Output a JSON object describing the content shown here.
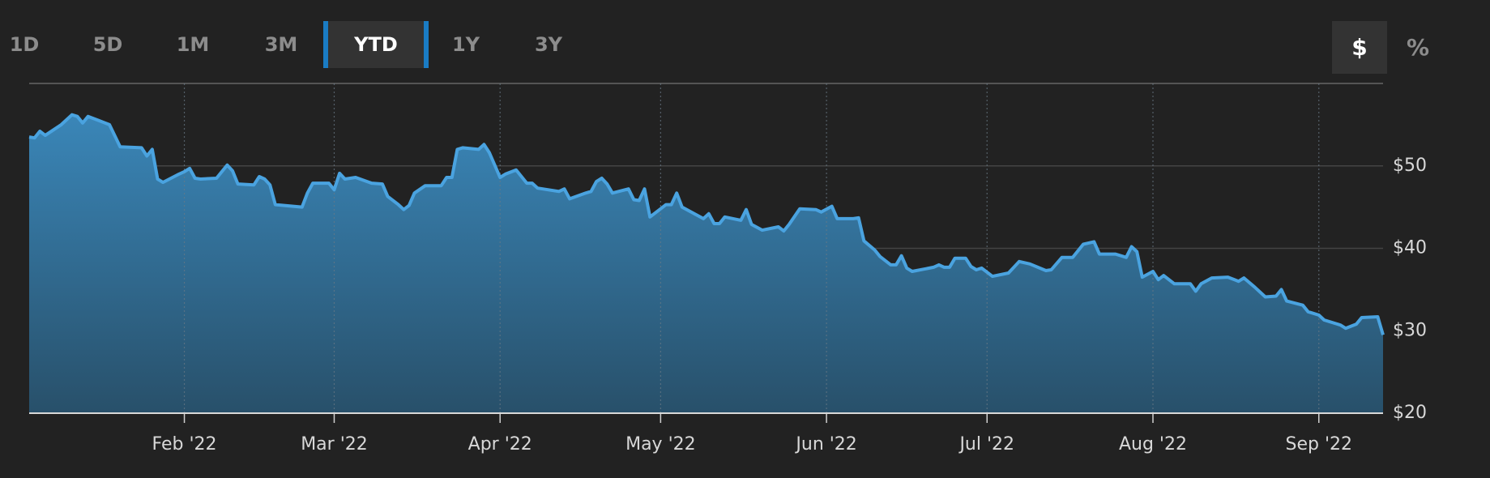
{
  "tabs": [
    "1D",
    "5D",
    "1M",
    "3M",
    "YTD",
    "1Y",
    "3Y"
  ],
  "units": [
    "$",
    "%"
  ],
  "chart_data": {
    "type": "area",
    "color": "#4aa3e0",
    "fill_top": "#3a86b8",
    "fill_bottom": "#28506a",
    "grid": true,
    "x": [
      0,
      1,
      2,
      3,
      6,
      8,
      9,
      10,
      11,
      13,
      15,
      17,
      21,
      22,
      23,
      24,
      25,
      28,
      29,
      30,
      31,
      32,
      35,
      37,
      38,
      39,
      42,
      43,
      44,
      45,
      46,
      51,
      52,
      53,
      56,
      57,
      58,
      59,
      61,
      64,
      66,
      67,
      69,
      70,
      71,
      72,
      74,
      77,
      78,
      79,
      80,
      81,
      84,
      85,
      86,
      88,
      89,
      91,
      93,
      94,
      95,
      99,
      100,
      101,
      104,
      105,
      106,
      107,
      108,
      109,
      112,
      113,
      114,
      115,
      116,
      118,
      119,
      120,
      121,
      122,
      124,
      126,
      127,
      128,
      129,
      130,
      133,
      134,
      135,
      137,
      140,
      141,
      142,
      144,
      147,
      148,
      150,
      151,
      154,
      155,
      156,
      158,
      159,
      161,
      162,
      163,
      164,
      165,
      169,
      170,
      171,
      172,
      173,
      175,
      176,
      177,
      178,
      180,
      183,
      185,
      187,
      190,
      191,
      193,
      195,
      197,
      199,
      200,
      203,
      205,
      206,
      207,
      208,
      210,
      211,
      212,
      214,
      217,
      218,
      219,
      221,
      224,
      226,
      227,
      229,
      231,
      233,
      234,
      235,
      238,
      239,
      241,
      242,
      245,
      246,
      248,
      249,
      252,
      253
    ],
    "values": [
      53.5,
      53.4,
      54.2,
      53.7,
      55.0,
      56.2,
      56.0,
      55.2,
      56.0,
      55.5,
      55.0,
      52.3,
      52.2,
      51.2,
      52.0,
      48.4,
      48.0,
      49.0,
      49.3,
      49.7,
      48.5,
      48.4,
      48.5,
      50.1,
      49.4,
      47.8,
      47.7,
      48.7,
      48.4,
      47.7,
      45.3,
      45.0,
      46.7,
      47.9,
      47.9,
      47.1,
      49.1,
      48.4,
      48.6,
      47.9,
      47.8,
      46.3,
      45.3,
      44.7,
      45.2,
      46.7,
      47.6,
      47.6,
      48.6,
      48.6,
      52.0,
      52.2,
      52.0,
      52.6,
      51.6,
      48.6,
      49.0,
      49.5,
      47.9,
      47.9,
      47.3,
      46.9,
      47.2,
      46.0,
      46.7,
      46.9,
      48.1,
      48.5,
      47.8,
      46.7,
      47.2,
      45.9,
      45.8,
      47.2,
      43.8,
      44.8,
      45.3,
      45.3,
      46.7,
      45.0,
      44.3,
      43.6,
      44.2,
      43.0,
      43.0,
      43.8,
      43.4,
      44.7,
      42.9,
      42.2,
      42.6,
      42.1,
      42.9,
      44.8,
      44.7,
      44.4,
      45.1,
      43.6,
      43.6,
      43.7,
      40.9,
      39.8,
      39.0,
      38.0,
      38.0,
      39.1,
      37.6,
      37.2,
      37.7,
      38.0,
      37.7,
      37.7,
      38.8,
      38.8,
      37.8,
      37.4,
      37.6,
      36.6,
      37.0,
      38.4,
      38.1,
      37.3,
      37.4,
      38.9,
      38.9,
      40.5,
      40.8,
      39.3,
      39.3,
      38.9,
      40.2,
      39.6,
      36.5,
      37.2,
      36.2,
      36.7,
      35.7,
      35.7,
      34.8,
      35.7,
      36.4,
      36.5,
      36.0,
      36.4,
      35.3,
      34.1,
      34.2,
      35.0,
      33.6,
      33.1,
      32.3,
      31.9,
      31.3,
      30.7,
      30.3,
      30.8,
      31.6,
      31.7,
      29.5
    ],
    "xlim": [
      0,
      253
    ],
    "xticks": [
      {
        "value": 29,
        "label": "Feb '22"
      },
      {
        "value": 57,
        "label": "Mar '22"
      },
      {
        "value": 88,
        "label": "Apr '22"
      },
      {
        "value": 118,
        "label": "May '22"
      },
      {
        "value": 149,
        "label": "Jun '22"
      },
      {
        "value": 179,
        "label": "Jul '22"
      },
      {
        "value": 210,
        "label": "Aug '22"
      },
      {
        "value": 241,
        "label": "Sep '22"
      }
    ],
    "ylim": [
      20,
      60
    ],
    "yticks": [
      {
        "value": 20,
        "label": "$20"
      },
      {
        "value": 30,
        "label": "$30"
      },
      {
        "value": 40,
        "label": "$40"
      },
      {
        "value": 50,
        "label": "$50"
      }
    ]
  }
}
